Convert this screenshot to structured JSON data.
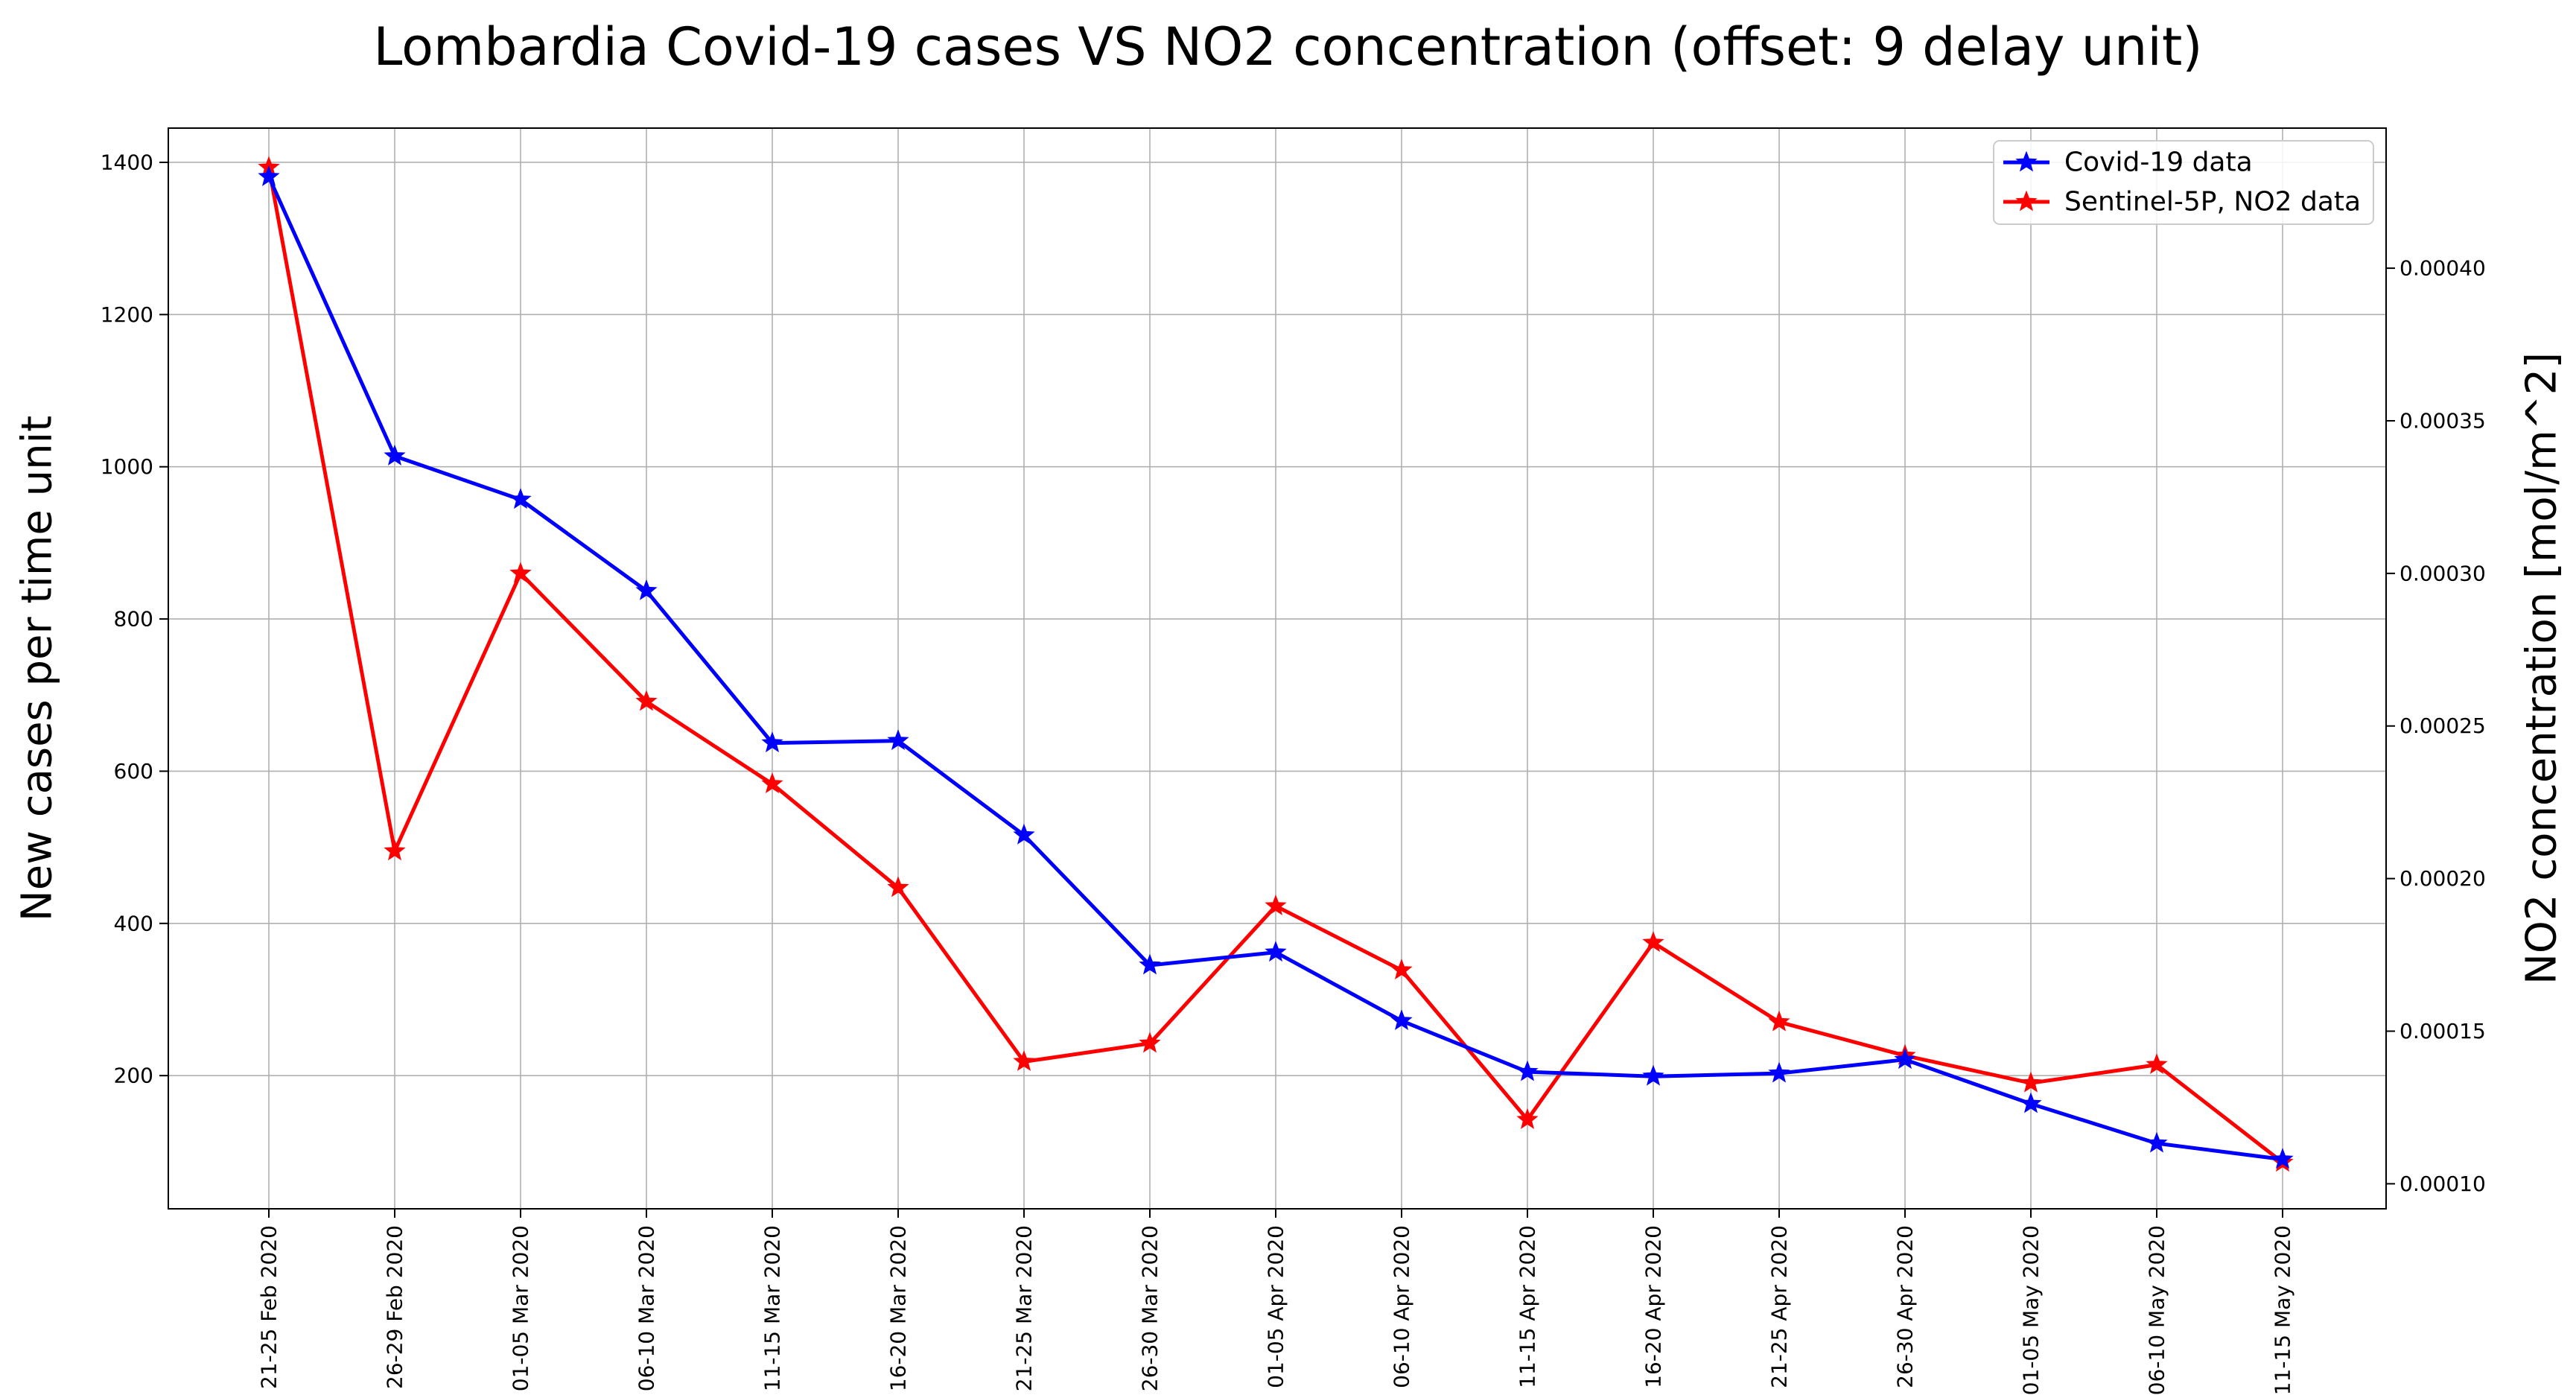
{
  "chart_data": {
    "type": "line",
    "title": "Lombardia Covid-19 cases VS NO2 concentration (offset: 9 delay unit)",
    "xlabel": "",
    "ylabel": "New cases per time unit",
    "y2label": "NO2 concentration [mol/m^2]",
    "categories": [
      "21-25 Feb 2020",
      "26-29 Feb 2020",
      "01-05 Mar 2020",
      "06-10 Mar 2020",
      "11-15 Mar 2020",
      "16-20 Mar 2020",
      "21-25 Mar 2020",
      "26-30 Mar 2020",
      "01-05 Apr 2020",
      "06-10 Apr 2020",
      "11-15 Apr 2020",
      "16-20 Apr 2020",
      "21-25 Apr 2020",
      "26-30 Apr 2020",
      "01-05 May 2020",
      "06-10 May 2020",
      "11-15 May 2020"
    ],
    "ylim": [
      25,
      1445
    ],
    "y2lim": [
      9.18e-05,
      0.0004459
    ],
    "yticks": [
      200,
      400,
      600,
      800,
      1000,
      1200,
      1400
    ],
    "y2ticks": [
      0.0001,
      0.00015,
      0.0002,
      0.00025,
      0.0003,
      0.00035,
      0.0004
    ],
    "y2tick_labels": [
      "0.00010",
      "0.00015",
      "0.00020",
      "0.00025",
      "0.00030",
      "0.00035",
      "0.00040"
    ],
    "grid": true,
    "legend_position": "top-right",
    "series": [
      {
        "name": "Covid-19 data",
        "axis": "left",
        "color": "#0000ff",
        "marker": "star",
        "values": [
          1381,
          1014,
          957,
          837,
          637,
          640,
          516,
          345,
          362,
          272,
          205,
          199,
          203,
          221,
          163,
          111,
          90
        ]
      },
      {
        "name": "Sentinel-5P, NO2 data",
        "axis": "right",
        "color": "#ff0000",
        "marker": "star",
        "values": [
          0.000433,
          0.000209,
          0.0003,
          0.000258,
          0.000231,
          0.000197,
          0.00014,
          0.000146,
          0.000191,
          0.00017,
          0.000121,
          0.000179,
          0.000153,
          0.000142,
          0.000133,
          0.000139,
          0.000107
        ]
      }
    ]
  }
}
